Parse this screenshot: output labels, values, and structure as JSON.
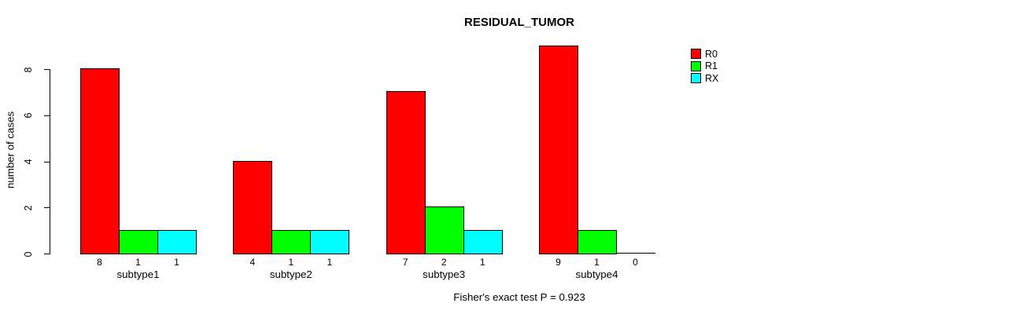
{
  "title": "RESIDUAL_TUMOR",
  "ylabel": "number of cases",
  "footnote": "Fisher's exact test P = 0.923",
  "colors": {
    "R0": "#FF0000",
    "R1": "#00FF00",
    "RX": "#00FFFF",
    "axis": "#000000",
    "background": "#FFFFFF"
  },
  "chart_data": {
    "type": "bar",
    "title": "RESIDUAL_TUMOR",
    "xlabel": "",
    "ylabel": "number of cases",
    "categories": [
      "subtype1",
      "subtype2",
      "subtype3",
      "subtype4"
    ],
    "series": [
      {
        "name": "R0",
        "color": "#FF0000",
        "values": [
          8,
          4,
          7,
          9
        ]
      },
      {
        "name": "R1",
        "color": "#00FF00",
        "values": [
          1,
          1,
          2,
          1
        ]
      },
      {
        "name": "RX",
        "color": "#00FFFF",
        "values": [
          1,
          1,
          1,
          0
        ]
      }
    ],
    "yticks": [
      0,
      2,
      4,
      6,
      8
    ],
    "ylim": [
      0,
      9
    ],
    "grid": false,
    "bar_value_labels_shown": true,
    "legend_position": "right",
    "annotation": "Fisher's exact test P = 0.923"
  }
}
